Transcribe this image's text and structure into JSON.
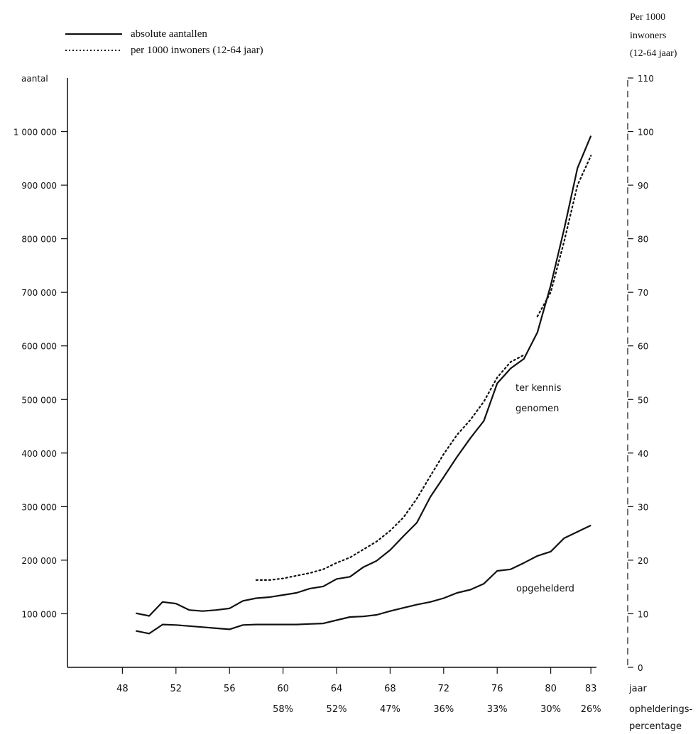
{
  "legend": {
    "absolute_label": "absolute aantallen",
    "per1000_label": "per 1000 inwoners (12-64 jaar)"
  },
  "axes": {
    "left_title": "aantal",
    "right_title_lines": [
      "Per 1000",
      "inwoners",
      "(12-64 jaar)"
    ],
    "x_title": "jaar",
    "clearance_title_lines": [
      "ophelderings-",
      "percentage"
    ]
  },
  "annotations": {
    "reported_lines": [
      "ter kennis",
      "genomen"
    ],
    "solved": "opgehelderd"
  },
  "chart_data": {
    "type": "line",
    "x_ticks": [
      48,
      52,
      56,
      60,
      64,
      68,
      72,
      76,
      80,
      83
    ],
    "x_range": [
      44,
      84
    ],
    "y_left_ticks": [
      {
        "value": 100000,
        "label": "100 000"
      },
      {
        "value": 200000,
        "label": "200 000"
      },
      {
        "value": 300000,
        "label": "300 000"
      },
      {
        "value": 400000,
        "label": "400 000"
      },
      {
        "value": 500000,
        "label": "500 000"
      },
      {
        "value": 600000,
        "label": "600 000"
      },
      {
        "value": 700000,
        "label": "700 000"
      },
      {
        "value": 800000,
        "label": "800 000"
      },
      {
        "value": 900000,
        "label": "900 000"
      },
      {
        "value": 1000000,
        "label": "1 000 000"
      }
    ],
    "y_left_range": [
      0,
      1100000
    ],
    "y_right_ticks": [
      0,
      10,
      20,
      30,
      40,
      50,
      60,
      70,
      80,
      90,
      100,
      110
    ],
    "y_right_range": [
      0,
      110
    ],
    "clearance_percentages": [
      {
        "x": 60,
        "label": "58%"
      },
      {
        "x": 64,
        "label": "52%"
      },
      {
        "x": 68,
        "label": "47%"
      },
      {
        "x": 72,
        "label": "36%"
      },
      {
        "x": 76,
        "label": "33%"
      },
      {
        "x": 80,
        "label": "30%"
      },
      {
        "x": 83,
        "label": "26%"
      }
    ],
    "series": [
      {
        "axis": "left",
        "style": "solid",
        "x": [
          49,
          50,
          51,
          52,
          53,
          54,
          55,
          56,
          57,
          58,
          59,
          60,
          61,
          62,
          63,
          64,
          65,
          66,
          67,
          68,
          69,
          70,
          71,
          72,
          73,
          74,
          75,
          76,
          77,
          78,
          79,
          80,
          81,
          82,
          83
        ],
        "values": [
          101000,
          96000,
          122000,
          119000,
          107000,
          105000,
          107000,
          110000,
          124000,
          129000,
          131000,
          135000,
          139000,
          147000,
          151000,
          165000,
          169000,
          187000,
          199000,
          219000,
          245000,
          270000,
          318000,
          355000,
          393000,
          428000,
          460000,
          530000,
          558000,
          576000,
          625000,
          713000,
          818000,
          932000,
          992000
        ]
      },
      {
        "axis": "right",
        "style": "dotted",
        "x": [
          58,
          59,
          60,
          61,
          62,
          63,
          64,
          65,
          66,
          67,
          68,
          69,
          70,
          71,
          72,
          73,
          74,
          75,
          76,
          77,
          78
        ],
        "values": [
          16.3,
          16.3,
          16.6,
          17.1,
          17.6,
          18.3,
          19.5,
          20.5,
          22.0,
          23.5,
          25.5,
          28.0,
          31.5,
          35.7,
          39.8,
          43.4,
          46.2,
          49.6,
          54.1,
          57.0,
          58.3
        ]
      },
      {
        "axis": "right",
        "style": "dotted",
        "x": [
          79,
          80,
          81,
          82,
          83
        ],
        "values": [
          65.5,
          70.0,
          79.5,
          90.0,
          95.5
        ]
      },
      {
        "axis": "left",
        "style": "solid",
        "x": [
          49,
          50,
          51,
          52,
          53,
          54,
          55,
          56,
          57,
          58,
          59,
          60,
          61,
          62,
          63,
          64,
          65,
          66,
          67,
          68,
          69,
          70,
          71,
          72,
          73,
          74,
          75,
          76,
          77,
          78,
          79,
          80,
          81,
          82,
          83
        ],
        "values": [
          68000,
          63000,
          80000,
          79000,
          77000,
          75000,
          73000,
          71000,
          79000,
          80000,
          80000,
          80000,
          80000,
          81000,
          82000,
          88000,
          94000,
          95000,
          98000,
          105000,
          111000,
          117000,
          122000,
          129000,
          139000,
          145000,
          156000,
          180000,
          183000,
          195000,
          208000,
          216000,
          241000,
          253000,
          265000
        ]
      }
    ]
  }
}
